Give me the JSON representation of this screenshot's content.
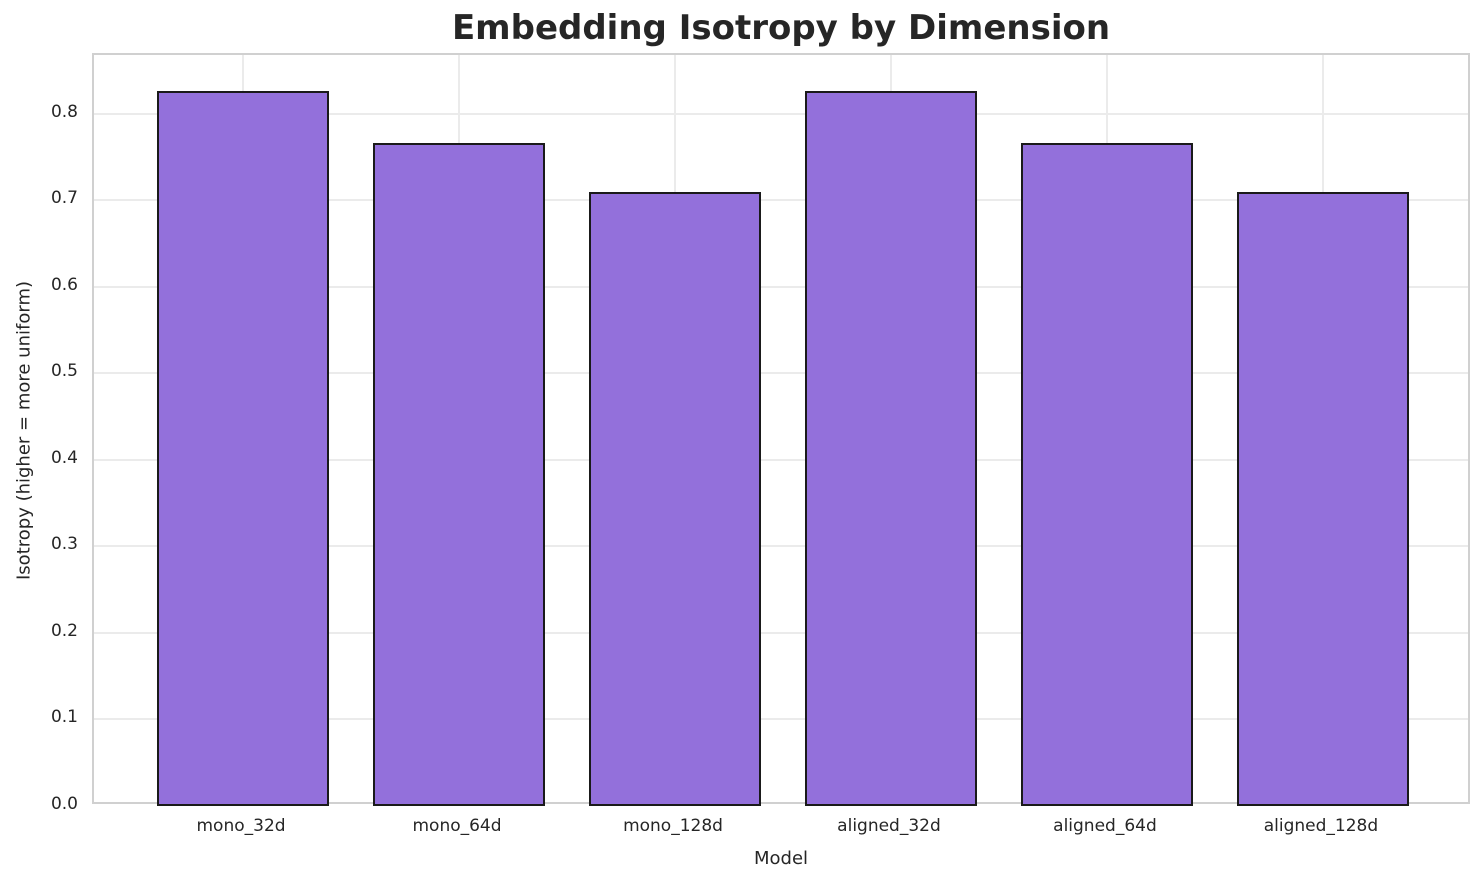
{
  "chart_data": {
    "type": "bar",
    "title": "Embedding Isotropy by Dimension",
    "xlabel": "Model",
    "ylabel": "Isotropy (higher = more uniform)",
    "categories": [
      "mono_32d",
      "mono_64d",
      "mono_128d",
      "aligned_32d",
      "aligned_64d",
      "aligned_128d"
    ],
    "values": [
      0.826,
      0.766,
      0.71,
      0.826,
      0.766,
      0.71
    ],
    "ylim": [
      0,
      0.868
    ],
    "yticks": [
      0.0,
      0.1,
      0.2,
      0.3,
      0.4,
      0.5,
      0.6,
      0.7,
      0.8
    ],
    "ytick_labels": [
      "0.0",
      "0.1",
      "0.2",
      "0.3",
      "0.4",
      "0.5",
      "0.6",
      "0.7",
      "0.8"
    ],
    "grid": true,
    "legend": "none",
    "bar_fill_color": "#9370DB",
    "bar_edge_color": "#1a1a1a",
    "grid_color": "#ebebeb",
    "spine_color": "#d0d0d0",
    "text_color": "#262626"
  }
}
